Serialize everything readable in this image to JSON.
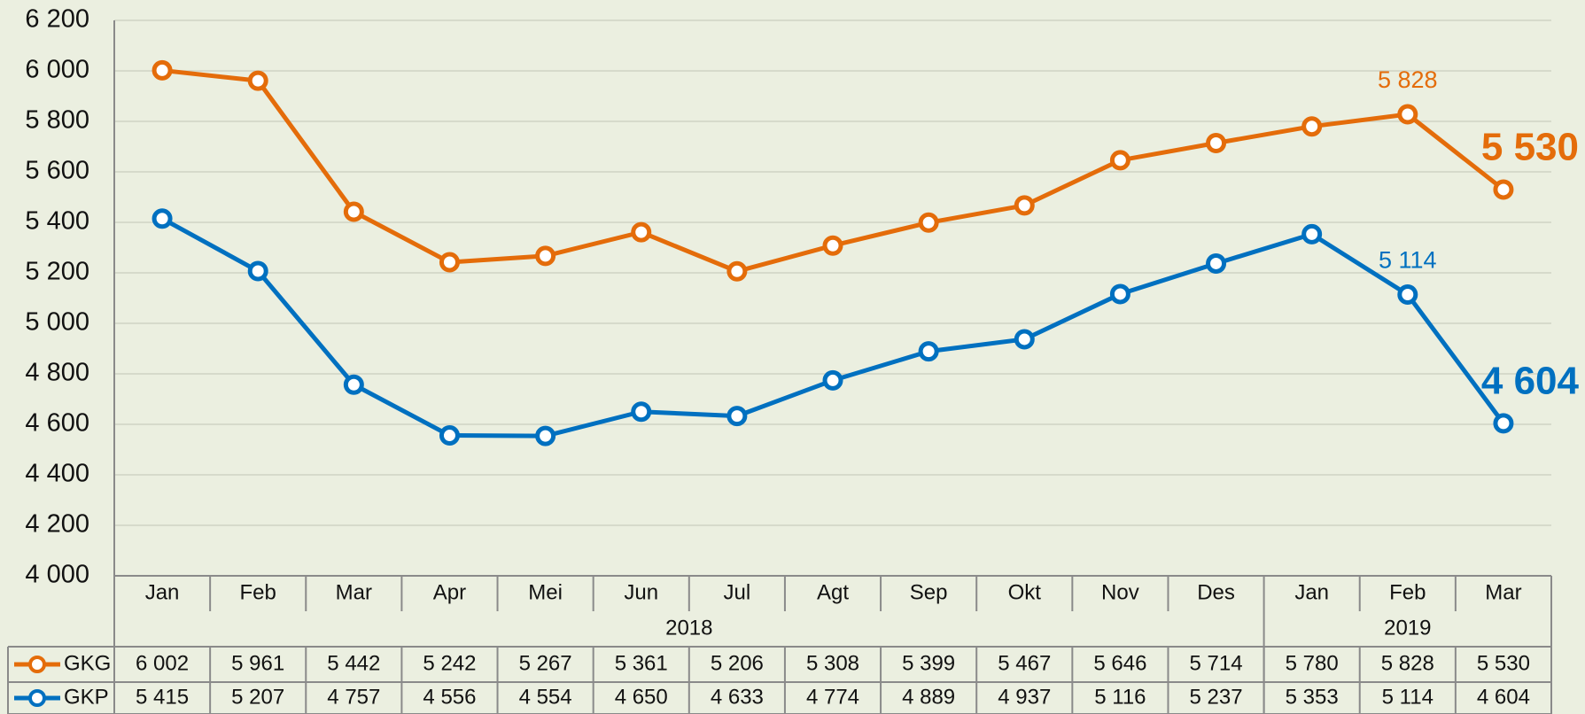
{
  "chart_data": {
    "type": "line",
    "categories": [
      "Jan",
      "Feb",
      "Mar",
      "Apr",
      "Mei",
      "Jun",
      "Jul",
      "Agt",
      "Sep",
      "Okt",
      "Nov",
      "Des",
      "Jan",
      "Feb",
      "Mar"
    ],
    "category_years": [
      "2018",
      "2018",
      "2018",
      "2018",
      "2018",
      "2018",
      "2018",
      "2018",
      "2018",
      "2018",
      "2018",
      "2018",
      "2019",
      "2019",
      "2019"
    ],
    "series": [
      {
        "name": "GKG",
        "color": "#e46c0a",
        "values": [
          6002,
          5961,
          5442,
          5242,
          5267,
          5361,
          5206,
          5308,
          5399,
          5467,
          5646,
          5714,
          5780,
          5828,
          5530
        ],
        "value_labels": [
          "6 002",
          "5 961",
          "5 442",
          "5 242",
          "5 267",
          "5 361",
          "5 206",
          "5 308",
          "5 399",
          "5 467",
          "5 646",
          "5 714",
          "5 780",
          "5 828",
          "5 530"
        ]
      },
      {
        "name": "GKP",
        "color": "#0070c0",
        "values": [
          5415,
          5207,
          4757,
          4556,
          4554,
          4650,
          4633,
          4774,
          4889,
          4937,
          5116,
          5237,
          5353,
          5114,
          4604
        ],
        "value_labels": [
          "5 415",
          "5 207",
          "4 757",
          "4 556",
          "4 554",
          "4 650",
          "4 633",
          "4 774",
          "4 889",
          "4 937",
          "5 116",
          "5 237",
          "5 353",
          "5 114",
          "4 604"
        ]
      }
    ],
    "ylim": [
      4000,
      6200
    ],
    "yticks": [
      {
        "value": 4000,
        "label": "4 000"
      },
      {
        "value": 4200,
        "label": "4 200"
      },
      {
        "value": 4400,
        "label": "4 400"
      },
      {
        "value": 4600,
        "label": "4 600"
      },
      {
        "value": 4800,
        "label": "4 800"
      },
      {
        "value": 5000,
        "label": "5 000"
      },
      {
        "value": 5200,
        "label": "5 200"
      },
      {
        "value": 5400,
        "label": "5 400"
      },
      {
        "value": 5600,
        "label": "5 600"
      },
      {
        "value": 5800,
        "label": "5 800"
      },
      {
        "value": 6000,
        "label": "6 000"
      },
      {
        "value": 6200,
        "label": "6 200"
      }
    ],
    "grid": true
  }
}
